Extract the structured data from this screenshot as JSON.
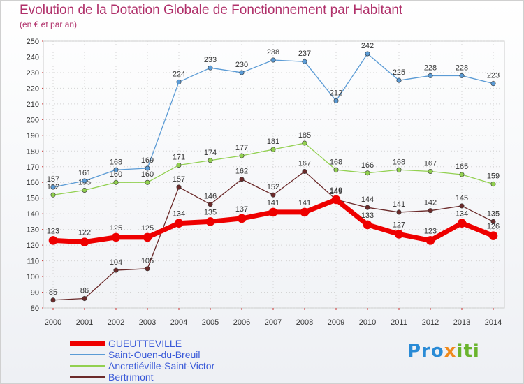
{
  "header": {
    "title": "Evolution de la Dotation Globale de Fonctionnement par Habitant",
    "subtitle": "(en € et par an)"
  },
  "logo": {
    "text": "Proxiti"
  },
  "chart_data": {
    "type": "line",
    "x": [
      "2000",
      "2001",
      "2002",
      "2003",
      "2004",
      "2005",
      "2006",
      "2007",
      "2008",
      "2009",
      "2010",
      "2011",
      "2012",
      "2013",
      "2014"
    ],
    "ylim": [
      80,
      250
    ],
    "yticks": [
      80,
      90,
      100,
      110,
      120,
      130,
      140,
      150,
      160,
      170,
      180,
      190,
      200,
      210,
      220,
      230,
      240,
      250
    ],
    "grid": true,
    "legend": "bottom-left",
    "series": [
      {
        "name": "GUEUTTEVILLE",
        "color": "#ee0000",
        "emphasis": true,
        "values": [
          123,
          122,
          125,
          125,
          134,
          135,
          137,
          141,
          141,
          149,
          133,
          127,
          123,
          134,
          126
        ]
      },
      {
        "name": "Saint-Ouen-du-Breuil",
        "color": "#5b9bd5",
        "values": [
          157,
          161,
          168,
          169,
          224,
          233,
          230,
          238,
          237,
          212,
          242,
          225,
          228,
          228,
          223
        ]
      },
      {
        "name": "Ancretiéville-Saint-Victor",
        "color": "#92d050",
        "values": [
          152,
          155,
          160,
          160,
          171,
          174,
          177,
          181,
          185,
          168,
          166,
          168,
          167,
          165,
          159
        ]
      },
      {
        "name": "Bertrimont",
        "color": "#6b2a2a",
        "values": [
          85,
          86,
          104,
          105,
          157,
          146,
          162,
          152,
          167,
          149,
          144,
          141,
          142,
          145,
          135
        ]
      }
    ]
  }
}
